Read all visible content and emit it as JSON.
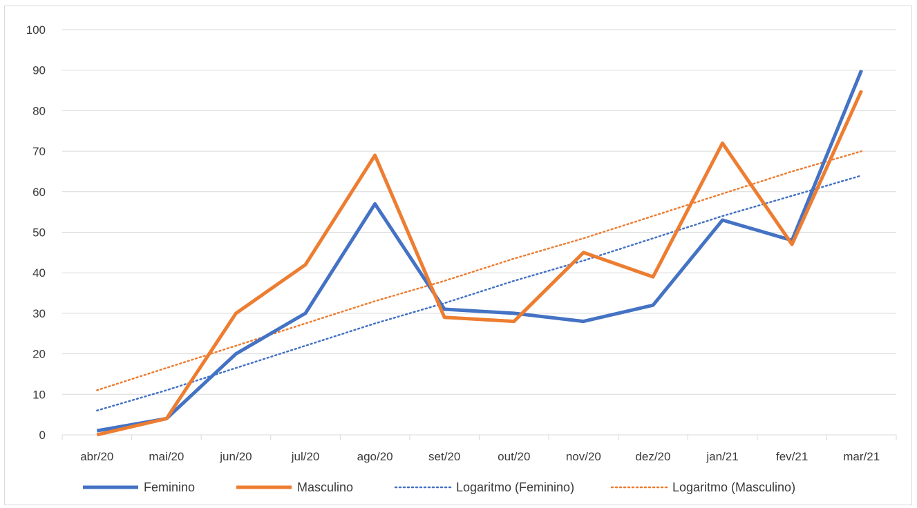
{
  "chart_data": {
    "type": "line",
    "categories": [
      "abr/20",
      "mai/20",
      "jun/20",
      "jul/20",
      "ago/20",
      "set/20",
      "out/20",
      "nov/20",
      "dez/20",
      "jan/21",
      "fev/21",
      "mar/21"
    ],
    "ylim": [
      0,
      100
    ],
    "yticks": [
      "0",
      "10",
      "20",
      "30",
      "40",
      "50",
      "60",
      "70",
      "80",
      "90",
      "100"
    ],
    "grid": true,
    "legend_position": "bottom",
    "series": [
      {
        "name": "Feminino",
        "color": "#4472C4",
        "style": "solid",
        "values": [
          1,
          4,
          20,
          30,
          57,
          31,
          30,
          28,
          32,
          53,
          48,
          90
        ]
      },
      {
        "name": "Masculino",
        "color": "#ED7D31",
        "style": "solid",
        "values": [
          0,
          4,
          30,
          42,
          69,
          29,
          28,
          45,
          39,
          72,
          47,
          85
        ]
      },
      {
        "name": "Logaritmo (Feminino)",
        "color": "#4472C4",
        "style": "dotted",
        "values": [
          6,
          11,
          16.5,
          22,
          27.5,
          32.5,
          38,
          43,
          48.5,
          54,
          59,
          64
        ]
      },
      {
        "name": "Logaritmo (Masculino)",
        "color": "#ED7D31",
        "style": "dotted",
        "values": [
          11,
          16.5,
          22,
          27.5,
          33,
          38,
          43.5,
          48.5,
          54,
          59.5,
          65,
          70
        ]
      }
    ]
  }
}
